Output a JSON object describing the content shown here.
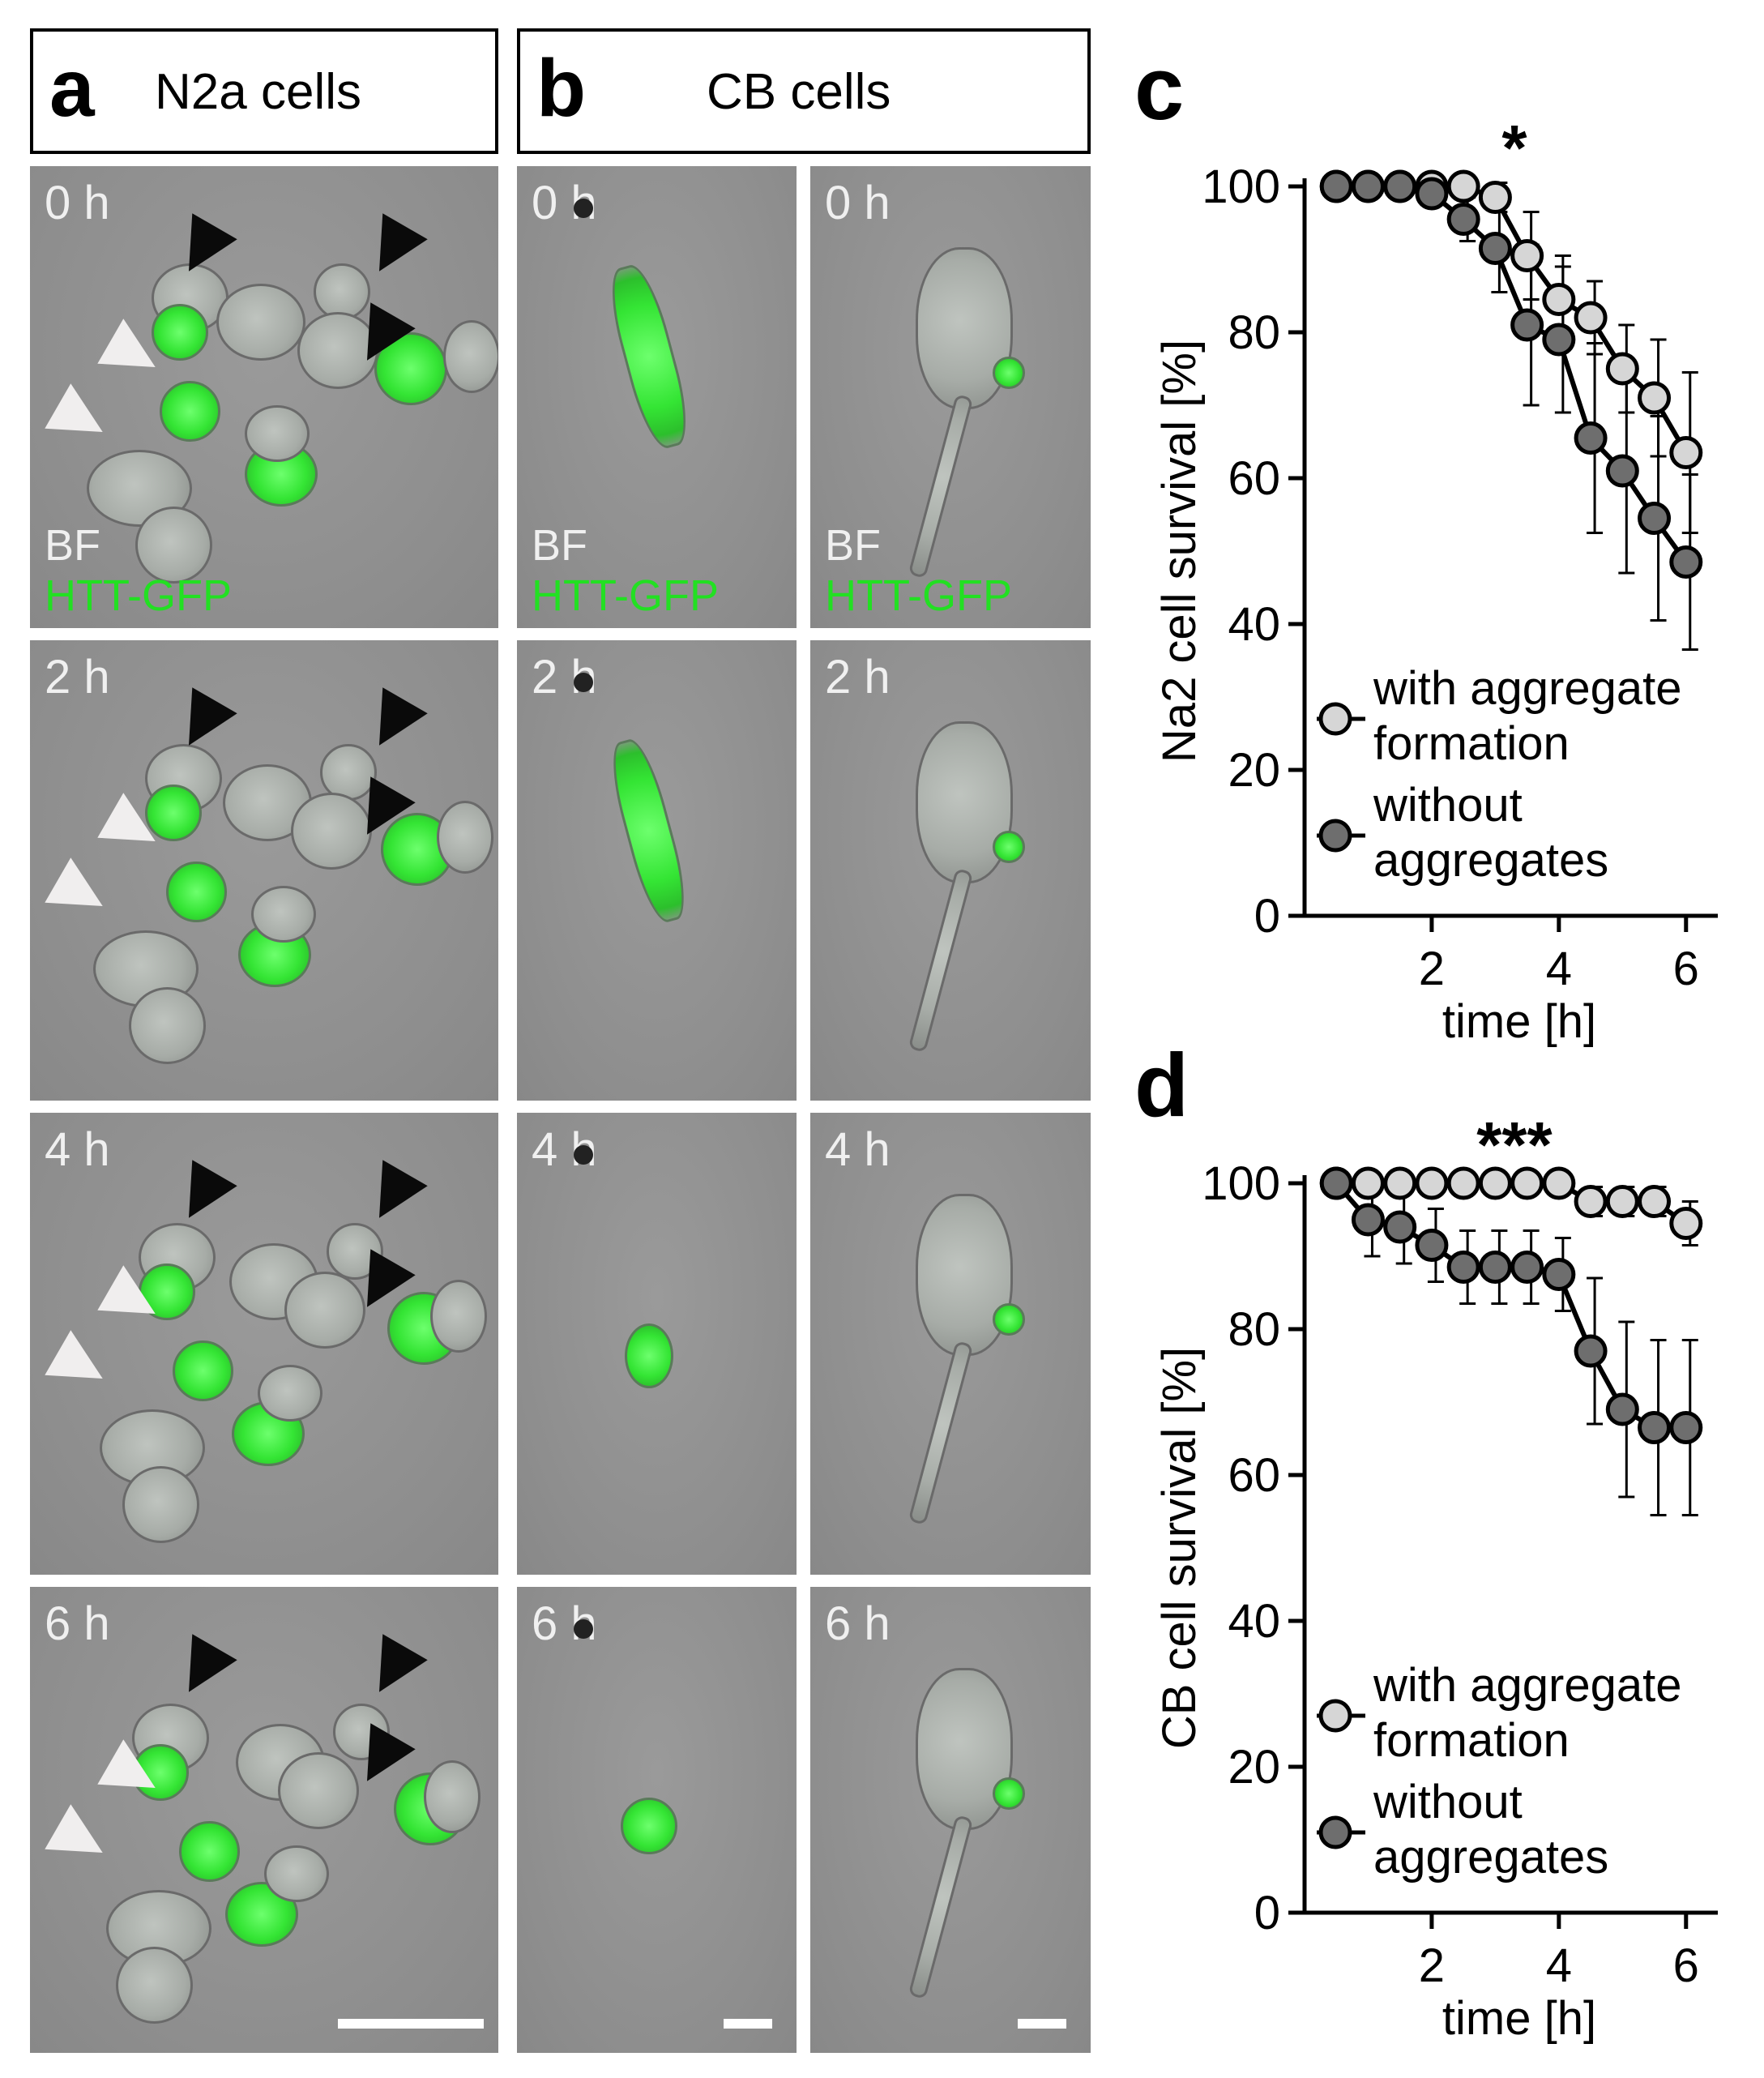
{
  "panel_a": {
    "letter": "a",
    "title": "N2a cells"
  },
  "panel_b": {
    "letter": "b",
    "title": "CB cells"
  },
  "panel_c": {
    "letter": "c"
  },
  "panel_d": {
    "letter": "d"
  },
  "image_labels": {
    "bf": "BF",
    "gfp": "HTT-GFP"
  },
  "timepoints": [
    "0 h",
    "2 h",
    "4 h",
    "6 h"
  ],
  "colors": {
    "gfp": "#22e022",
    "with_aggregate": "#d6d6d6",
    "without_aggregate": "#6e6e6e"
  },
  "chart_data": [
    {
      "type": "line",
      "ylabel": "Na2 cell survival [%]",
      "xlabel": "time [h]",
      "xlim": [
        0,
        6.5
      ],
      "ylim": [
        0,
        100
      ],
      "xticks": [
        2,
        4,
        6
      ],
      "yticks": [
        0,
        20,
        40,
        60,
        80,
        100
      ],
      "significance": "*",
      "legend": {
        "placement": "bottom-left"
      },
      "series": [
        {
          "name": "with aggregate formation",
          "legend_lines": [
            "with aggregate",
            "formation"
          ],
          "color": "#d6d6d6",
          "x": [
            0.5,
            1.0,
            1.5,
            2.0,
            2.5,
            3.0,
            3.5,
            4.0,
            4.5,
            5.0,
            5.5,
            6.0
          ],
          "y": [
            100,
            100,
            100,
            100,
            100,
            98.5,
            90.5,
            84.5,
            82,
            75,
            71,
            63.5
          ],
          "err": [
            0,
            0,
            0,
            0,
            0,
            2,
            6,
            6,
            5,
            6,
            8,
            11
          ]
        },
        {
          "name": "without aggregates",
          "legend_lines": [
            "without",
            "aggregates"
          ],
          "color": "#6e6e6e",
          "x": [
            0.5,
            1.0,
            1.5,
            2.0,
            2.5,
            3.0,
            3.5,
            4.0,
            4.5,
            5.0,
            5.5,
            6.0
          ],
          "y": [
            100,
            100,
            100,
            99,
            95.5,
            91.5,
            81,
            79,
            65.5,
            61,
            54.5,
            48.5
          ],
          "err": [
            0,
            0,
            0,
            0,
            3,
            6,
            11,
            10,
            13,
            14,
            14,
            12
          ]
        }
      ]
    },
    {
      "type": "line",
      "ylabel": "CB cell survival [%]",
      "xlabel": "time [h]",
      "xlim": [
        0,
        6.5
      ],
      "ylim": [
        0,
        100
      ],
      "xticks": [
        2,
        4,
        6
      ],
      "yticks": [
        0,
        20,
        40,
        60,
        80,
        100
      ],
      "significance": "***",
      "legend": {
        "placement": "bottom-left"
      },
      "series": [
        {
          "name": "with aggregate formation",
          "legend_lines": [
            "with aggregate",
            "formation"
          ],
          "color": "#d6d6d6",
          "x": [
            0.5,
            1.0,
            1.5,
            2.0,
            2.5,
            3.0,
            3.5,
            4.0,
            4.5,
            5.0,
            5.5,
            6.0
          ],
          "y": [
            100,
            100,
            100,
            100,
            100,
            100,
            100,
            100,
            97.5,
            97.5,
            97.5,
            94.5
          ],
          "err": [
            0,
            0,
            0,
            0,
            0,
            0,
            0,
            0,
            2,
            2,
            2,
            3
          ]
        },
        {
          "name": "without aggregates",
          "legend_lines": [
            "without",
            "aggregates"
          ],
          "color": "#6e6e6e",
          "x": [
            0.5,
            1.0,
            1.5,
            2.0,
            2.5,
            3.0,
            3.5,
            4.0,
            4.5,
            5.0,
            5.5,
            6.0
          ],
          "y": [
            100,
            95,
            94,
            91.5,
            88.5,
            88.5,
            88.5,
            87.5,
            77,
            69,
            66.5,
            66.5
          ],
          "err": [
            0,
            5,
            5,
            5,
            5,
            5,
            5,
            5,
            10,
            12,
            12,
            12
          ]
        }
      ]
    }
  ]
}
